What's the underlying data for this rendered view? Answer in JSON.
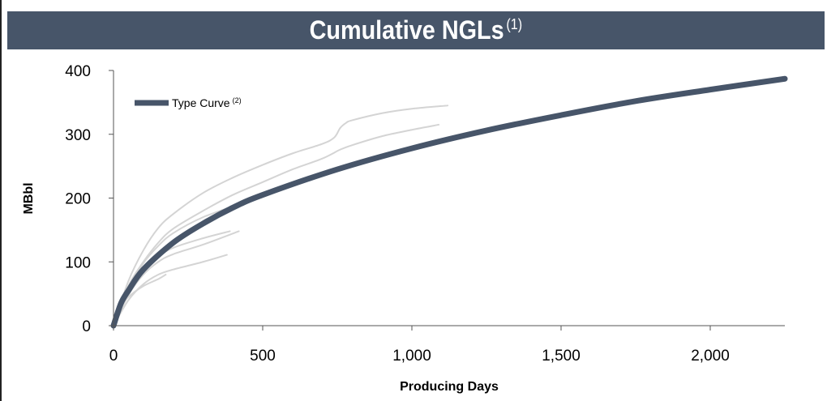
{
  "title": {
    "text": "Cumulative NGLs",
    "superscript": "(1)"
  },
  "colors": {
    "title_bar": "#475569",
    "type_curve": "#475569",
    "well_curves": "#d4d4d4"
  },
  "chart_data": {
    "type": "line",
    "title": "Cumulative NGLs (1)",
    "xlabel": "Producing Days",
    "ylabel": "MBbl",
    "xlim": [
      0,
      2250
    ],
    "ylim": [
      0,
      400
    ],
    "x_ticks": [
      0,
      500,
      1000,
      1500,
      2000
    ],
    "x_tick_labels": [
      "0",
      "500",
      "1,000",
      "1,500",
      "2,000"
    ],
    "y_ticks": [
      0,
      100,
      200,
      300,
      400
    ],
    "y_tick_labels": [
      "0",
      "100",
      "200",
      "300",
      "400"
    ],
    "grid": false,
    "legend": {
      "position": "top-left",
      "entries": [
        {
          "label": "Type Curve",
          "superscript": "(2)"
        }
      ]
    },
    "series": [
      {
        "name": "Type Curve",
        "style": "thick",
        "x": [
          0,
          25,
          50,
          100,
          200,
          300,
          400,
          500,
          750,
          1000,
          1250,
          1500,
          1750,
          2000,
          2250
        ],
        "y": [
          0,
          35,
          55,
          88,
          130,
          160,
          185,
          205,
          245,
          278,
          306,
          330,
          352,
          370,
          387
        ]
      },
      {
        "style": "thin",
        "x": [
          0,
          50,
          100,
          150,
          200,
          300,
          400,
          500,
          600,
          700,
          740,
          760,
          780,
          800,
          900,
          1000,
          1120
        ],
        "y": [
          0,
          70,
          118,
          153,
          175,
          208,
          232,
          252,
          270,
          285,
          295,
          310,
          318,
          322,
          333,
          340,
          345
        ]
      },
      {
        "style": "thin",
        "x": [
          0,
          50,
          100,
          150,
          200,
          300,
          400,
          500,
          600,
          700,
          760,
          800,
          900,
          1000,
          1090
        ],
        "y": [
          0,
          62,
          100,
          130,
          152,
          180,
          205,
          225,
          245,
          262,
          276,
          283,
          297,
          307,
          315
        ]
      },
      {
        "style": "thin",
        "x": [
          0,
          50,
          100,
          150,
          200,
          300,
          420
        ],
        "y": [
          0,
          58,
          98,
          125,
          145,
          170,
          190
        ]
      },
      {
        "style": "thin",
        "x": [
          0,
          50,
          100,
          150,
          200,
          300,
          390
        ],
        "y": [
          0,
          50,
          85,
          108,
          122,
          137,
          148
        ]
      },
      {
        "style": "thin",
        "x": [
          0,
          50,
          100,
          150,
          200,
          300,
          420
        ],
        "y": [
          0,
          48,
          80,
          100,
          112,
          127,
          148
        ]
      },
      {
        "style": "thin",
        "x": [
          0,
          50,
          100,
          150,
          200,
          300,
          380
        ],
        "y": [
          0,
          40,
          65,
          80,
          88,
          100,
          111
        ]
      },
      {
        "style": "thin",
        "x": [
          0,
          25,
          50,
          100,
          150,
          175
        ],
        "y": [
          0,
          28,
          45,
          62,
          73,
          80
        ]
      }
    ]
  }
}
